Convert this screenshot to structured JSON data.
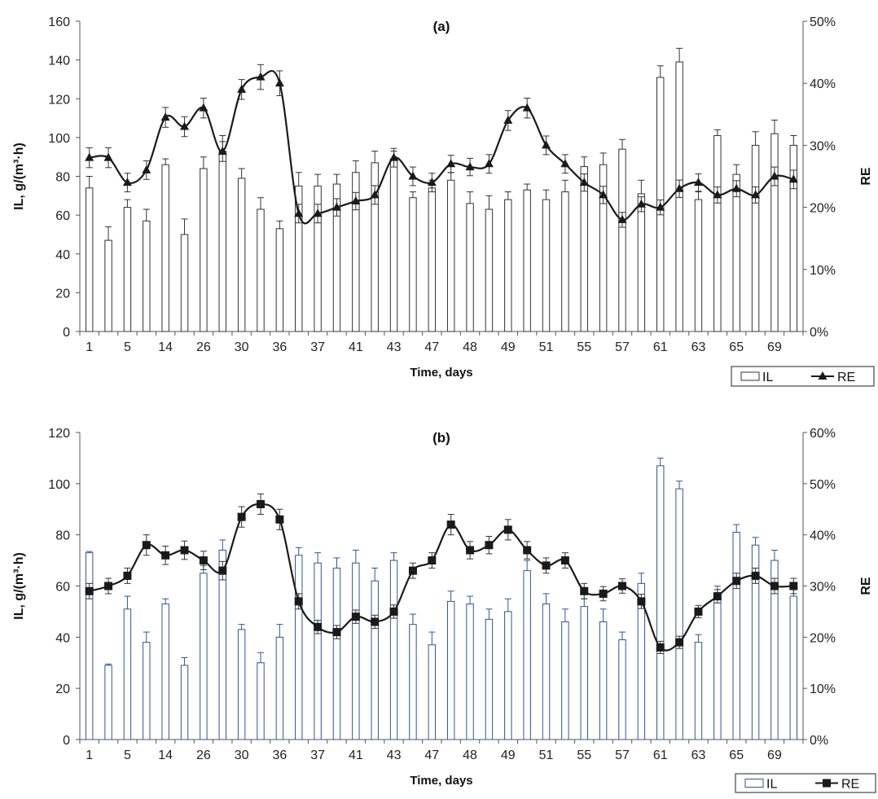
{
  "chart_data": [
    {
      "id": "a",
      "type": "bar",
      "title": "(a)",
      "xlabel": "Time, days",
      "ylabel": "IL, g/(m³·h)",
      "y2label": "RE",
      "ylim": [
        0,
        160
      ],
      "y2lim": [
        0,
        50
      ],
      "yticks": [
        "0",
        "20",
        "40",
        "60",
        "80",
        "100",
        "120",
        "140",
        "160"
      ],
      "y2ticks": [
        "0%",
        "10%",
        "20%",
        "30%",
        "40%",
        "50%"
      ],
      "xtick_labels": [
        "1",
        "5",
        "14",
        "26",
        "30",
        "36",
        "37",
        "41",
        "43",
        "47",
        "48",
        "49",
        "51",
        "55",
        "57",
        "61",
        "63",
        "65",
        "69"
      ],
      "grid": false,
      "legend": {
        "position": "bottom-right",
        "items": [
          "IL",
          "RE"
        ]
      },
      "colors": {
        "bar_edge": "#333333",
        "bar_fill": "#ffffff",
        "line": "#1a1a1a"
      },
      "marker": "triangle",
      "series": [
        {
          "name": "IL",
          "kind": "bar",
          "values": [
            74,
            47,
            64,
            57,
            86,
            50,
            84,
            93,
            79,
            63,
            53,
            75,
            75,
            76,
            82,
            87,
            89,
            69,
            74,
            78,
            66,
            63,
            68,
            73,
            68,
            72,
            85,
            86,
            94,
            71,
            131,
            139,
            68,
            101,
            81,
            96,
            102,
            96
          ],
          "errors": [
            6,
            7,
            4,
            6,
            3,
            8,
            6,
            8,
            5,
            6,
            4,
            7,
            6,
            5,
            6,
            6,
            4,
            3,
            4,
            4,
            6,
            7,
            4,
            3,
            5,
            6,
            5,
            6,
            5,
            7,
            6,
            7,
            4,
            3,
            5,
            7,
            7,
            5
          ]
        },
        {
          "name": "RE",
          "kind": "line",
          "axis": "right",
          "values": [
            28,
            28,
            24,
            26,
            34.5,
            33,
            36,
            29,
            39,
            41,
            40,
            19,
            19,
            20,
            21,
            22,
            28,
            25,
            24,
            27,
            26.5,
            27,
            34,
            36,
            30,
            27,
            24,
            22,
            18,
            20.5,
            20,
            23,
            24,
            22,
            23,
            22,
            25,
            24.5
          ],
          "errors": [
            1.6,
            1.6,
            1.5,
            1.5,
            1.6,
            1.6,
            1.6,
            1.6,
            1.6,
            2,
            2,
            1.5,
            1.5,
            1.4,
            1.4,
            1.5,
            1.5,
            1.5,
            1.5,
            1.4,
            1.4,
            1.5,
            1.6,
            1.6,
            1.5,
            1.5,
            1.4,
            1.4,
            1.2,
            1.2,
            1.2,
            1.4,
            1.4,
            1.3,
            1.3,
            1.3,
            1.5,
            1.5
          ]
        }
      ]
    },
    {
      "id": "b",
      "type": "bar",
      "title": "(b)",
      "xlabel": "Time, days",
      "ylabel": "IL, g/(m³·h)",
      "y2label": "RE",
      "ylim": [
        0,
        120
      ],
      "y2lim": [
        0,
        60
      ],
      "yticks": [
        "0",
        "20",
        "40",
        "60",
        "80",
        "100",
        "120"
      ],
      "y2ticks": [
        "0%",
        "10%",
        "20%",
        "30%",
        "40%",
        "50%",
        "60%"
      ],
      "xtick_labels": [
        "1",
        "5",
        "14",
        "26",
        "30",
        "36",
        "37",
        "41",
        "43",
        "47",
        "48",
        "49",
        "51",
        "55",
        "57",
        "61",
        "63",
        "65",
        "69"
      ],
      "grid": false,
      "legend": {
        "position": "bottom-right",
        "items": [
          "IL",
          "RE"
        ]
      },
      "colors": {
        "bar_edge": "#2f5597",
        "bar_fill": "#ffffff",
        "line": "#1a1a1a"
      },
      "marker": "square",
      "series": [
        {
          "name": "IL",
          "kind": "bar",
          "values": [
            73,
            29,
            51,
            38,
            53,
            29,
            65,
            74,
            43,
            30,
            40,
            72,
            69,
            67,
            69,
            62,
            70,
            45,
            37,
            54,
            53,
            47,
            50,
            66,
            53,
            46,
            52,
            46,
            39,
            61,
            107,
            98,
            38,
            57,
            81,
            76,
            70,
            56
          ],
          "errors": [
            0.5,
            0.5,
            5,
            4,
            2,
            3,
            3,
            4,
            2,
            4,
            5,
            3,
            4,
            4,
            5,
            5,
            3,
            4,
            5,
            4,
            3,
            4,
            5,
            4,
            4,
            5,
            3,
            5,
            3,
            4,
            3,
            3,
            3,
            3,
            3,
            3,
            4,
            3
          ]
        },
        {
          "name": "RE",
          "kind": "line",
          "axis": "right",
          "values": [
            29,
            30,
            32,
            38,
            36,
            37,
            35,
            33,
            43.5,
            46,
            43,
            27,
            22,
            21,
            24,
            23,
            25,
            33,
            35,
            42,
            37,
            38,
            41,
            37,
            34,
            35,
            29,
            28.5,
            30,
            27,
            18,
            19,
            25,
            28,
            31,
            32,
            30,
            30
          ],
          "errors": [
            1.5,
            1.5,
            1.5,
            2,
            1.8,
            1.8,
            1.8,
            1.8,
            2,
            2,
            2,
            1.5,
            1.3,
            1.3,
            1.3,
            1.3,
            1.3,
            1.5,
            1.5,
            2,
            1.7,
            1.7,
            2,
            1.7,
            1.5,
            1.5,
            1.5,
            1.4,
            1.4,
            1.4,
            1.2,
            1.2,
            1.2,
            1.3,
            1.5,
            1.5,
            1.5,
            1.5
          ]
        }
      ]
    }
  ]
}
